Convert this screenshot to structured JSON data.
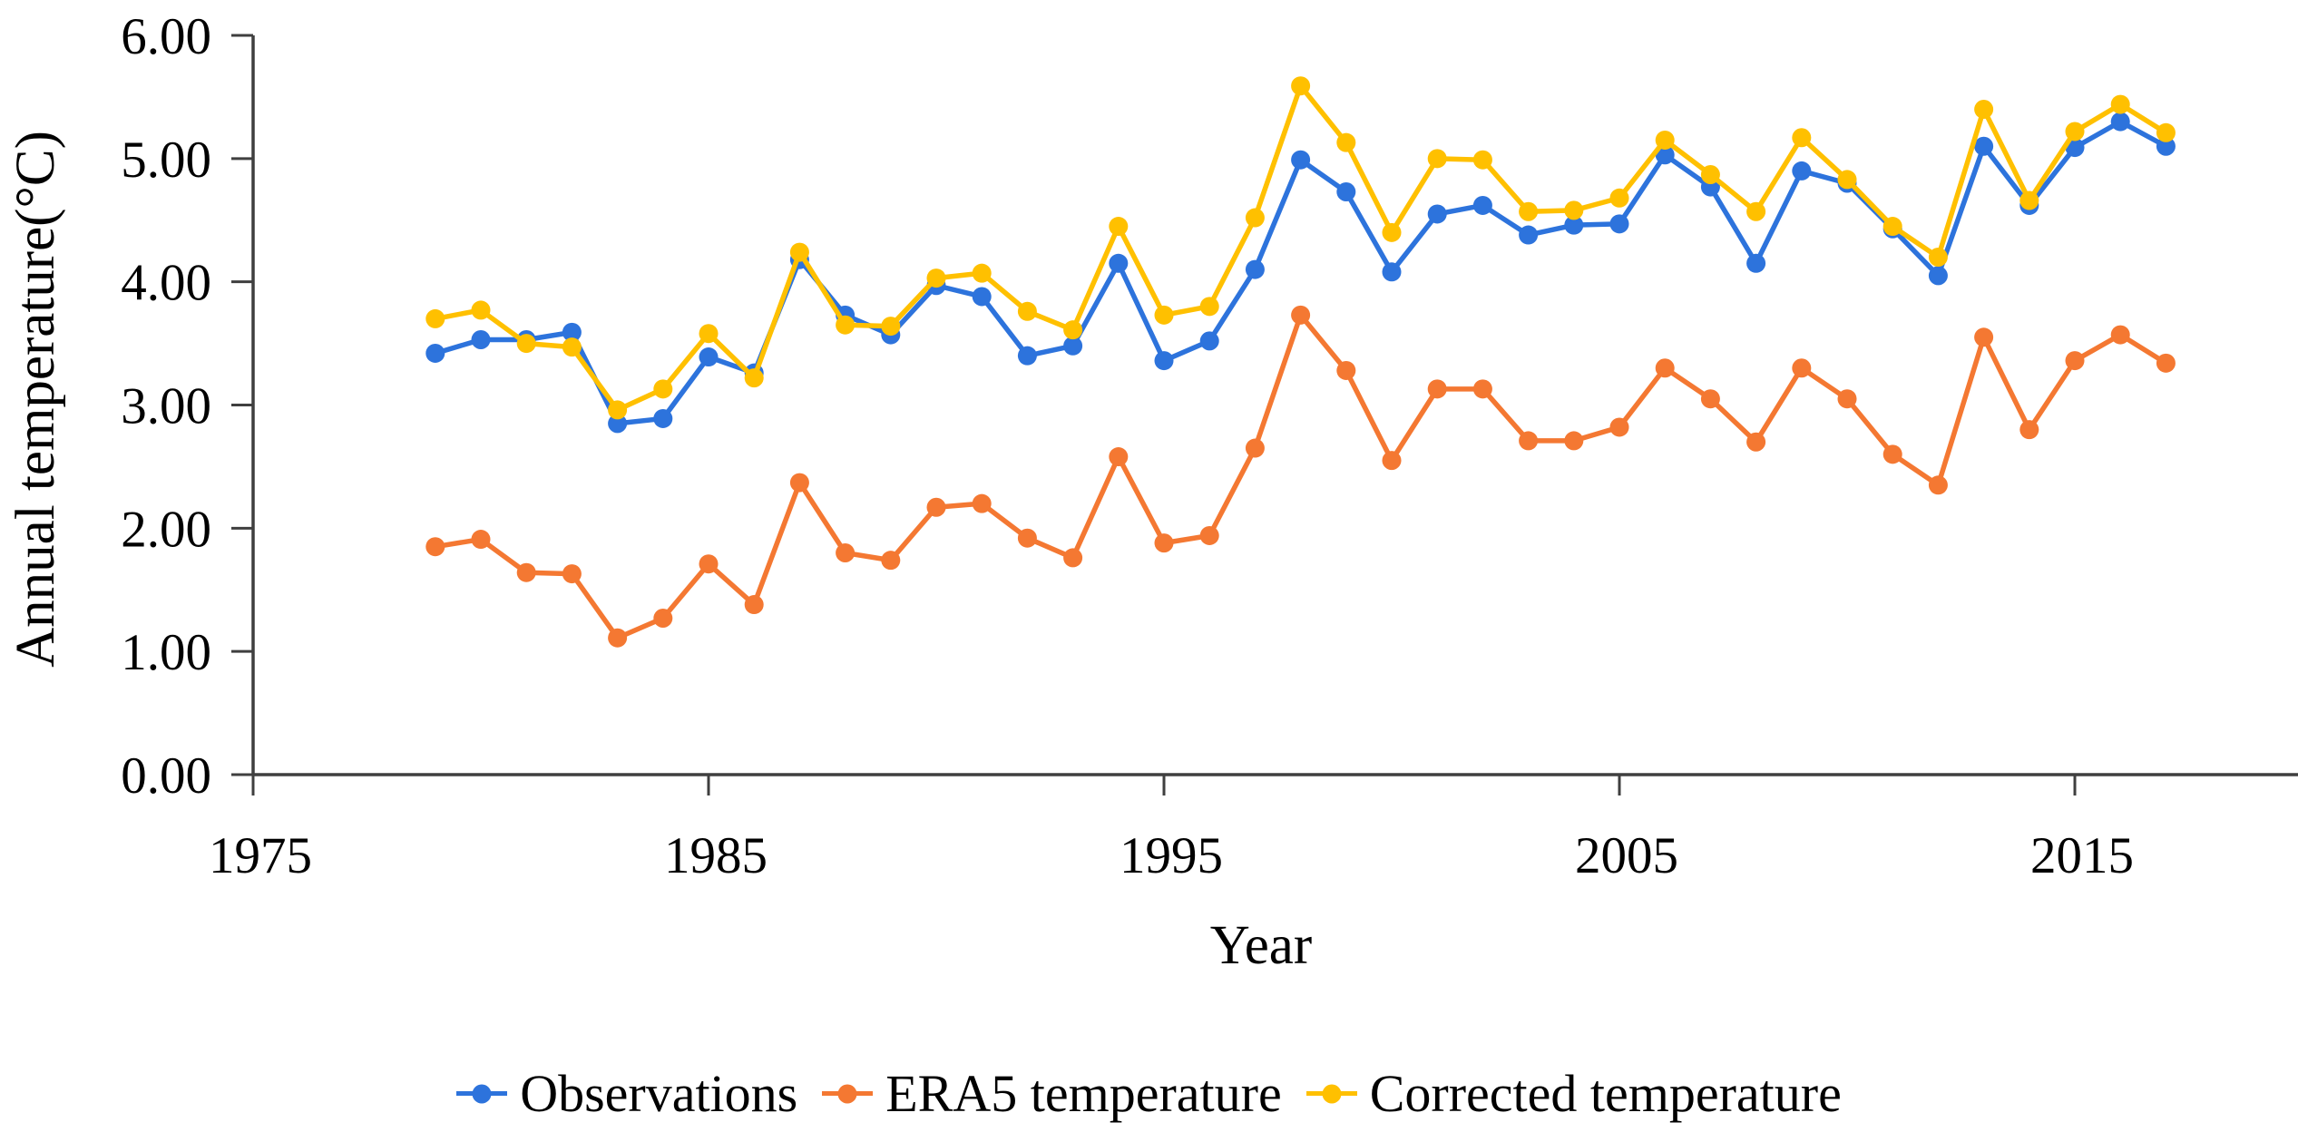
{
  "figure": {
    "background": "#ffffff",
    "axis_color": "#3f3f3f",
    "text_color": "#000000"
  },
  "chart_data": {
    "type": "line",
    "title": "",
    "xlabel": "Year",
    "ylabel": "Annual temperature(°C)",
    "x": [
      1979,
      1980,
      1981,
      1982,
      1983,
      1984,
      1985,
      1986,
      1987,
      1988,
      1989,
      1990,
      1991,
      1992,
      1993,
      1994,
      1995,
      1996,
      1997,
      1998,
      1999,
      2000,
      2001,
      2002,
      2003,
      2004,
      2005,
      2006,
      2007,
      2008,
      2009,
      2010,
      2011,
      2012,
      2013,
      2014,
      2015,
      2016,
      2017
    ],
    "xlim": [
      1975,
      2019.9
    ],
    "ylim": [
      0,
      6
    ],
    "xticks": [
      1975,
      1985,
      1995,
      2005,
      2015
    ],
    "yticks": [
      0,
      1,
      2,
      3,
      4,
      5,
      6
    ],
    "ytick_labels": [
      "0.00",
      "1.00",
      "2.00",
      "3.00",
      "4.00",
      "5.00",
      "6.00"
    ],
    "grid": false,
    "legend_position": "bottom",
    "marker": "circle",
    "series": [
      {
        "name": "Observations",
        "color": "#2d73dc",
        "values": [
          3.42,
          3.53,
          3.53,
          3.59,
          2.85,
          2.89,
          3.39,
          3.26,
          4.18,
          3.73,
          3.57,
          3.97,
          3.88,
          3.4,
          3.48,
          4.15,
          3.36,
          3.52,
          4.1,
          4.99,
          4.73,
          4.08,
          4.55,
          4.62,
          4.38,
          4.46,
          4.47,
          5.03,
          4.77,
          4.15,
          4.9,
          4.8,
          4.43,
          4.05,
          5.1,
          4.62,
          5.09,
          5.3,
          5.1
        ]
      },
      {
        "name": "ERA5 temperature",
        "color": "#f47832",
        "values": [
          1.85,
          1.91,
          1.64,
          1.63,
          1.11,
          1.27,
          1.71,
          1.38,
          2.37,
          1.8,
          1.74,
          2.17,
          2.2,
          1.92,
          1.76,
          2.58,
          1.88,
          1.94,
          2.65,
          3.73,
          3.28,
          2.55,
          3.13,
          3.13,
          2.71,
          2.71,
          2.82,
          3.3,
          3.05,
          2.7,
          3.3,
          3.05,
          2.6,
          2.35,
          3.55,
          2.8,
          3.36,
          3.57,
          3.34
        ]
      },
      {
        "name": "Corrected temperature",
        "color": "#ffc000",
        "values": [
          3.7,
          3.77,
          3.5,
          3.47,
          2.96,
          3.13,
          3.58,
          3.22,
          4.24,
          3.65,
          3.64,
          4.03,
          4.07,
          3.76,
          3.61,
          4.45,
          3.73,
          3.8,
          4.52,
          5.59,
          5.13,
          4.4,
          5.0,
          4.99,
          4.57,
          4.58,
          4.68,
          5.15,
          4.87,
          4.57,
          5.17,
          4.83,
          4.45,
          4.2,
          5.4,
          4.66,
          5.22,
          5.44,
          5.21
        ]
      }
    ]
  }
}
